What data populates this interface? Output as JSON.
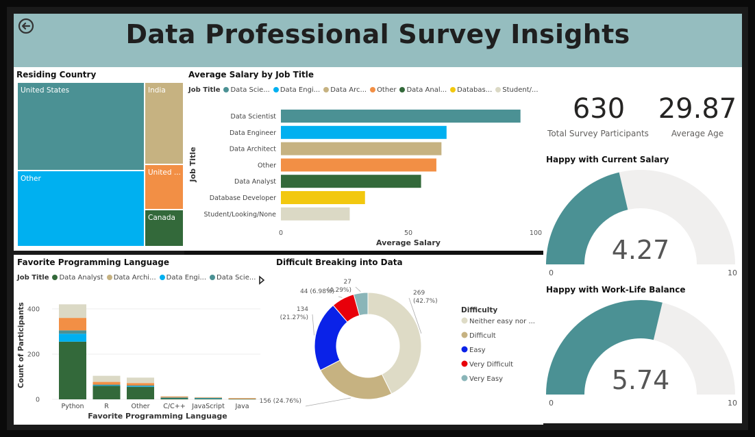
{
  "header": {
    "title": "Data Professional Survey Insights"
  },
  "colors": {
    "header_bg": "#95bdbf",
    "teal": "#4b9194",
    "blue": "#00b0f0",
    "tan": "#c6b281",
    "orange": "#f28f45",
    "green": "#33693a",
    "yellow": "#f2c80f",
    "beige": "#dbd9c5",
    "gauge_bg": "#f0efee",
    "donut_beige": "#dedbc6",
    "donut_tan": "#c6b281",
    "donut_blue": "#0a22e8",
    "donut_red": "#e8000a",
    "donut_teal": "#8ab5b8"
  },
  "treemap": {
    "title": "Residing Country",
    "cells": [
      {
        "label": "United States",
        "color": "teal"
      },
      {
        "label": "Other",
        "color": "blue"
      },
      {
        "label": "India",
        "color": "tan"
      },
      {
        "label": "United ...",
        "color": "orange"
      },
      {
        "label": "Canada",
        "color": "green"
      }
    ]
  },
  "salary_chart": {
    "title": "Average Salary by Job Title",
    "legend_title": "Job Title",
    "legend_items": [
      "Data Scie...",
      "Data Engi...",
      "Data Arc...",
      "Other",
      "Data Anal...",
      "Databas...",
      "Student/..."
    ]
  },
  "kpis": {
    "participants_value": "630",
    "participants_label": "Total Survey Participants",
    "age_value": "29.87",
    "age_label": "Average Age"
  },
  "gauge_salary": {
    "title": "Happy with Current Salary",
    "value_text": "4.27",
    "min_label": "0",
    "max_label": "10"
  },
  "gauge_balance": {
    "title": "Happy with Work-Life Balance",
    "value_text": "5.74",
    "min_label": "0",
    "max_label": "10"
  },
  "language_chart": {
    "title": "Favorite Programming Language",
    "legend_title": "Job Title",
    "legend_items": [
      "Data Analyst",
      "Data Archi...",
      "Data Engi...",
      "Data Scie..."
    ]
  },
  "donut_chart": {
    "title": "Difficult Breaking into Data",
    "legend_title": "Difficulty",
    "legend_items": [
      "Neither easy nor ...",
      "Difficult",
      "Easy",
      "Very Difficult",
      "Very Easy"
    ]
  },
  "chart_data": [
    {
      "type": "bar",
      "orientation": "horizontal",
      "title": "Average Salary by Job Title",
      "xlabel": "Average Salary",
      "ylabel": "Job Title",
      "xlim": [
        0,
        100
      ],
      "xticks": [
        "0",
        "50",
        "100"
      ],
      "categories": [
        "Data Scientist",
        "Data Engineer",
        "Data Architect",
        "Other",
        "Data Analyst",
        "Database Developer",
        "Student/Looking/None"
      ],
      "values": [
        94,
        65,
        63,
        61,
        55,
        33,
        27
      ],
      "colors": [
        "teal",
        "blue",
        "tan",
        "orange",
        "green",
        "yellow",
        "beige"
      ]
    },
    {
      "type": "bar",
      "stacked": true,
      "title": "Favorite Programming Language",
      "xlabel": "Favorite Programming Language",
      "ylabel": "Count of Participants",
      "ylim": [
        0,
        430
      ],
      "yticks": [
        "0",
        "200",
        "400"
      ],
      "categories": [
        "Python",
        "R",
        "Other",
        "C/C++",
        "JavaScript",
        "Java"
      ],
      "series": [
        {
          "name": "Data Analyst",
          "color": "green",
          "values": [
            255,
            60,
            55,
            6,
            3,
            2
          ]
        },
        {
          "name": "Data Engi...",
          "color": "blue",
          "values": [
            35,
            2,
            3,
            1,
            2,
            0
          ]
        },
        {
          "name": "Data Scie...",
          "color": "teal",
          "values": [
            15,
            3,
            4,
            1,
            2,
            0
          ]
        },
        {
          "name": "",
          "color": "orange",
          "values": [
            55,
            12,
            10,
            4,
            1,
            3
          ]
        },
        {
          "name": "",
          "color": "beige",
          "values": [
            60,
            27,
            24,
            2,
            2,
            0
          ]
        }
      ]
    },
    {
      "type": "pie",
      "donut": true,
      "title": "Difficult Breaking into Data",
      "legend_title": "Difficulty",
      "slices": [
        {
          "name": "Neither easy nor ...",
          "value": 269,
          "label": "269",
          "pct": "(42.7%)",
          "color": "donut_beige"
        },
        {
          "name": "Difficult",
          "value": 156,
          "label": "156 (24.76%)",
          "pct": "",
          "color": "donut_tan"
        },
        {
          "name": "Easy",
          "value": 134,
          "label": "134",
          "pct": "(21.27%)",
          "color": "donut_blue"
        },
        {
          "name": "Very Difficult",
          "value": 44,
          "label": "44 (6.98%)",
          "pct": "",
          "color": "donut_red"
        },
        {
          "name": "Very Easy",
          "value": 27,
          "label": "27",
          "pct": "(4.29%)",
          "color": "donut_teal"
        }
      ]
    },
    {
      "type": "gauge",
      "title": "Happy with Current Salary",
      "value": 4.27,
      "min": 0,
      "max": 10
    },
    {
      "type": "gauge",
      "title": "Happy with Work-Life Balance",
      "value": 5.74,
      "min": 0,
      "max": 10
    }
  ]
}
